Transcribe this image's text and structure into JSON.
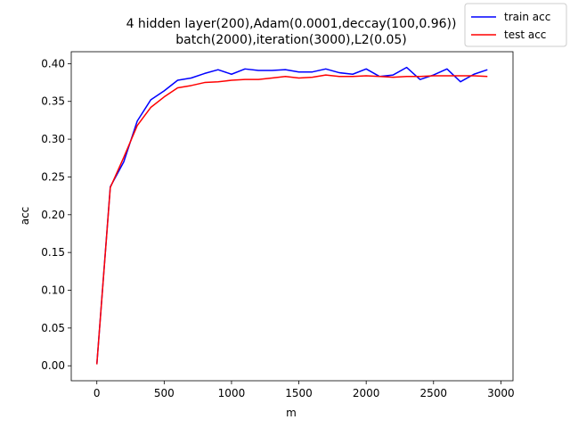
{
  "chart_data": {
    "type": "line",
    "title_lines": [
      "4 hidden layer(200),Adam(0.0001,deccay(100,0.96))",
      "batch(2000),iteration(3000),L2(0.05)"
    ],
    "xlabel": "m",
    "ylabel": "acc",
    "xlim": [
      -190,
      3090
    ],
    "ylim": [
      -0.0198,
      0.4158
    ],
    "xticks": [
      0,
      500,
      1000,
      1500,
      2000,
      2500,
      3000
    ],
    "xtick_labels": [
      "0",
      "500",
      "1000",
      "1500",
      "2000",
      "2500",
      "3000"
    ],
    "yticks": [
      0.0,
      0.05,
      0.1,
      0.15,
      0.2,
      0.25,
      0.3,
      0.35,
      0.4
    ],
    "ytick_labels": [
      "0.00",
      "0.05",
      "0.10",
      "0.15",
      "0.20",
      "0.25",
      "0.30",
      "0.35",
      "0.40"
    ],
    "grid": false,
    "legend_position": "top-right",
    "x": [
      0,
      100,
      200,
      300,
      400,
      500,
      600,
      700,
      800,
      900,
      1000,
      1100,
      1200,
      1300,
      1400,
      1500,
      1600,
      1700,
      1800,
      1900,
      2000,
      2100,
      2200,
      2300,
      2400,
      2500,
      2600,
      2700,
      2800,
      2900
    ],
    "series": [
      {
        "name": "train acc",
        "color": "#0000ff",
        "values": [
          0.002,
          0.237,
          0.27,
          0.324,
          0.352,
          0.364,
          0.378,
          0.381,
          0.387,
          0.392,
          0.386,
          0.393,
          0.391,
          0.391,
          0.392,
          0.389,
          0.389,
          0.393,
          0.388,
          0.386,
          0.393,
          0.383,
          0.385,
          0.395,
          0.379,
          0.385,
          0.393,
          0.376,
          0.386,
          0.392
        ]
      },
      {
        "name": "test acc",
        "color": "#ff0000",
        "values": [
          0.002,
          0.236,
          0.276,
          0.318,
          0.342,
          0.356,
          0.368,
          0.371,
          0.375,
          0.376,
          0.378,
          0.379,
          0.379,
          0.381,
          0.383,
          0.381,
          0.382,
          0.385,
          0.383,
          0.383,
          0.384,
          0.383,
          0.382,
          0.383,
          0.383,
          0.384,
          0.384,
          0.384,
          0.384,
          0.383
        ]
      }
    ]
  }
}
